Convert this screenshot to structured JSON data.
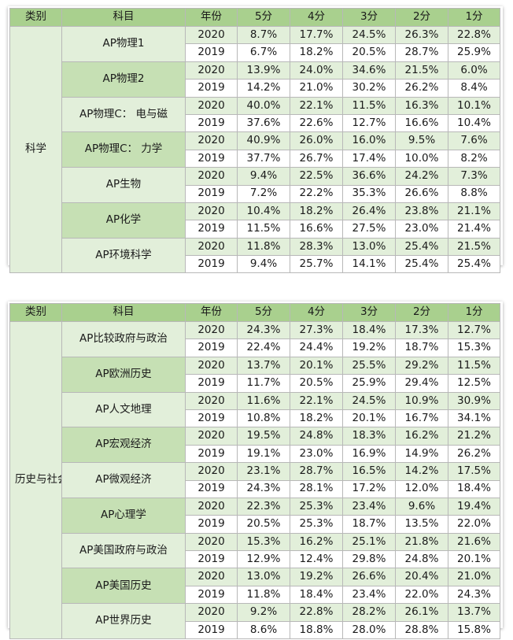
{
  "colors": {
    "header_bg": "#a9d08e",
    "light_green": "#e2efda",
    "mid_green": "#c6e0b4",
    "white": "#ffffff",
    "border": "#b8b8b8"
  },
  "headers": [
    "类别",
    "科目",
    "年份",
    "5分",
    "4分",
    "3分",
    "2分",
    "1分"
  ],
  "tables": [
    {
      "category": "科学",
      "subjects": [
        {
          "name": "AP物理1",
          "rows": [
            {
              "year": "2020",
              "values": [
                "8.7%",
                "17.7%",
                "24.5%",
                "26.3%",
                "22.8%"
              ]
            },
            {
              "year": "2019",
              "values": [
                "6.7%",
                "18.2%",
                "20.5%",
                "28.7%",
                "25.9%"
              ]
            }
          ]
        },
        {
          "name": "AP物理2",
          "rows": [
            {
              "year": "2020",
              "values": [
                "13.9%",
                "24.0%",
                "34.6%",
                "21.5%",
                "6.0%"
              ]
            },
            {
              "year": "2019",
              "values": [
                "14.2%",
                "21.0%",
                "30.2%",
                "26.2%",
                "8.4%"
              ]
            }
          ]
        },
        {
          "name": "AP物理C： 电与磁",
          "rows": [
            {
              "year": "2020",
              "values": [
                "40.0%",
                "22.1%",
                "11.5%",
                "16.3%",
                "10.1%"
              ]
            },
            {
              "year": "2019",
              "values": [
                "37.6%",
                "22.6%",
                "12.7%",
                "16.6%",
                "10.4%"
              ]
            }
          ]
        },
        {
          "name": "AP物理C： 力学",
          "rows": [
            {
              "year": "2020",
              "values": [
                "40.9%",
                "26.0%",
                "16.0%",
                "9.5%",
                "7.6%"
              ]
            },
            {
              "year": "2019",
              "values": [
                "37.7%",
                "26.7%",
                "17.4%",
                "10.0%",
                "8.2%"
              ]
            }
          ]
        },
        {
          "name": "AP生物",
          "rows": [
            {
              "year": "2020",
              "values": [
                "9.4%",
                "22.5%",
                "36.6%",
                "24.2%",
                "7.3%"
              ]
            },
            {
              "year": "2019",
              "values": [
                "7.2%",
                "22.2%",
                "35.3%",
                "26.6%",
                "8.8%"
              ]
            }
          ]
        },
        {
          "name": "AP化学",
          "rows": [
            {
              "year": "2020",
              "values": [
                "10.4%",
                "18.2%",
                "26.4%",
                "23.8%",
                "21.1%"
              ]
            },
            {
              "year": "2019",
              "values": [
                "11.5%",
                "16.6%",
                "27.5%",
                "23.0%",
                "21.4%"
              ]
            }
          ]
        },
        {
          "name": "AP环境科学",
          "rows": [
            {
              "year": "2020",
              "values": [
                "11.8%",
                "28.3%",
                "13.0%",
                "25.4%",
                "21.5%"
              ]
            },
            {
              "year": "2019",
              "values": [
                "9.4%",
                "25.7%",
                "14.1%",
                "25.4%",
                "25.4%"
              ]
            }
          ]
        }
      ]
    },
    {
      "category": "历史与社会科学",
      "subjects": [
        {
          "name": "AP比较政府与政治",
          "rows": [
            {
              "year": "2020",
              "values": [
                "24.3%",
                "27.3%",
                "18.4%",
                "17.3%",
                "12.7%"
              ]
            },
            {
              "year": "2019",
              "values": [
                "22.4%",
                "24.4%",
                "19.2%",
                "18.7%",
                "15.3%"
              ]
            }
          ]
        },
        {
          "name": "AP欧洲历史",
          "rows": [
            {
              "year": "2020",
              "values": [
                "13.7%",
                "20.1%",
                "25.5%",
                "29.2%",
                "11.5%"
              ]
            },
            {
              "year": "2019",
              "values": [
                "11.7%",
                "20.5%",
                "25.9%",
                "29.4%",
                "12.5%"
              ]
            }
          ]
        },
        {
          "name": "AP人文地理",
          "rows": [
            {
              "year": "2020",
              "values": [
                "11.6%",
                "22.1%",
                "24.5%",
                "10.9%",
                "30.9%"
              ]
            },
            {
              "year": "2019",
              "values": [
                "10.8%",
                "18.2%",
                "20.1%",
                "16.7%",
                "34.1%"
              ]
            }
          ]
        },
        {
          "name": "AP宏观经济",
          "rows": [
            {
              "year": "2020",
              "values": [
                "19.5%",
                "24.8%",
                "18.3%",
                "16.2%",
                "21.2%"
              ]
            },
            {
              "year": "2019",
              "values": [
                "19.1%",
                "23.0%",
                "16.9%",
                "14.9%",
                "26.2%"
              ]
            }
          ]
        },
        {
          "name": "AP微观经济",
          "rows": [
            {
              "year": "2020",
              "values": [
                "23.1%",
                "28.7%",
                "16.5%",
                "14.2%",
                "17.5%"
              ]
            },
            {
              "year": "2019",
              "values": [
                "24.3%",
                "28.1%",
                "17.2%",
                "12.0%",
                "18.4%"
              ]
            }
          ]
        },
        {
          "name": "AP心理学",
          "rows": [
            {
              "year": "2020",
              "values": [
                "22.3%",
                "25.3%",
                "23.4%",
                "9.6%",
                "19.4%"
              ]
            },
            {
              "year": "2019",
              "values": [
                "20.5%",
                "25.3%",
                "18.7%",
                "13.5%",
                "22.0%"
              ]
            }
          ]
        },
        {
          "name": "AP美国政府与政治",
          "rows": [
            {
              "year": "2020",
              "values": [
                "15.3%",
                "16.2%",
                "25.1%",
                "21.8%",
                "21.6%"
              ]
            },
            {
              "year": "2019",
              "values": [
                "12.9%",
                "12.4%",
                "29.8%",
                "24.8%",
                "20.1%"
              ]
            }
          ]
        },
        {
          "name": "AP美国历史",
          "rows": [
            {
              "year": "2020",
              "values": [
                "13.0%",
                "19.2%",
                "26.6%",
                "20.4%",
                "21.0%"
              ]
            },
            {
              "year": "2019",
              "values": [
                "11.8%",
                "18.4%",
                "23.4%",
                "22.0%",
                "24.3%"
              ]
            }
          ]
        },
        {
          "name": "AP世界历史",
          "rows": [
            {
              "year": "2020",
              "values": [
                "9.2%",
                "22.8%",
                "28.2%",
                "26.1%",
                "13.7%"
              ]
            },
            {
              "year": "2019",
              "values": [
                "8.6%",
                "18.8%",
                "28.0%",
                "28.8%",
                "15.8%"
              ]
            }
          ]
        }
      ]
    }
  ]
}
